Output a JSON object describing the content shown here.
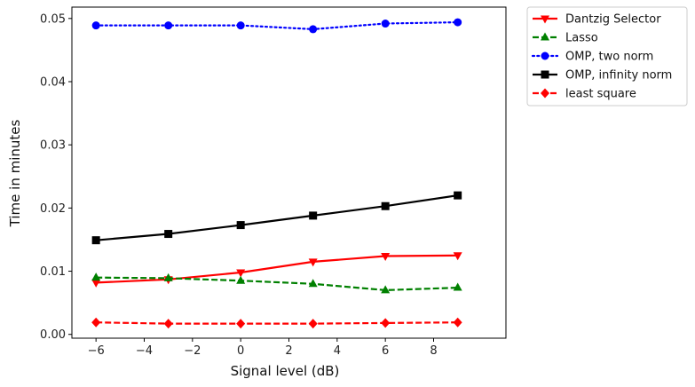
{
  "chart_data": {
    "type": "line",
    "xlabel": "Signal level (dB)",
    "ylabel": "Time in minutes",
    "xlim": [
      -7,
      11
    ],
    "ylim": [
      -0.0006,
      0.0518
    ],
    "xticks": [
      -6,
      -4,
      -2,
      0,
      2,
      4,
      6,
      8
    ],
    "xtick_labels": [
      "−6",
      "−4",
      "−2",
      "0",
      "2",
      "4",
      "6",
      "8"
    ],
    "yticks": [
      0.0,
      0.01,
      0.02,
      0.03,
      0.04,
      0.05
    ],
    "ytick_labels": [
      "0.00",
      "0.01",
      "0.02",
      "0.03",
      "0.04",
      "0.05"
    ],
    "grid": false,
    "legend_position": "outside top-right",
    "x": [
      -6,
      -3,
      0,
      3,
      6,
      9
    ],
    "series": [
      {
        "name": "Dantzig Selector",
        "values": [
          0.0082,
          0.0087,
          0.0098,
          0.0115,
          0.0124,
          0.0125
        ],
        "color": "#ff0000",
        "linestyle": "solid",
        "marker": "triangle-down"
      },
      {
        "name": "Lasso",
        "values": [
          0.009,
          0.0089,
          0.0085,
          0.008,
          0.007,
          0.0074
        ],
        "color": "#008000",
        "linestyle": "dashed",
        "marker": "triangle-up"
      },
      {
        "name": "OMP, two norm",
        "values": [
          0.0489,
          0.0489,
          0.0489,
          0.0483,
          0.0492,
          0.0494
        ],
        "color": "#0000ff",
        "linestyle": "dotted",
        "marker": "circle"
      },
      {
        "name": "OMP, infinity norm",
        "values": [
          0.0149,
          0.0159,
          0.0173,
          0.0188,
          0.0203,
          0.022
        ],
        "color": "#000000",
        "linestyle": "solid",
        "marker": "square"
      },
      {
        "name": "least square",
        "values": [
          0.0019,
          0.0017,
          0.0017,
          0.0017,
          0.0018,
          0.0019
        ],
        "color": "#ff0000",
        "linestyle": "dashed",
        "marker": "diamond"
      }
    ]
  }
}
